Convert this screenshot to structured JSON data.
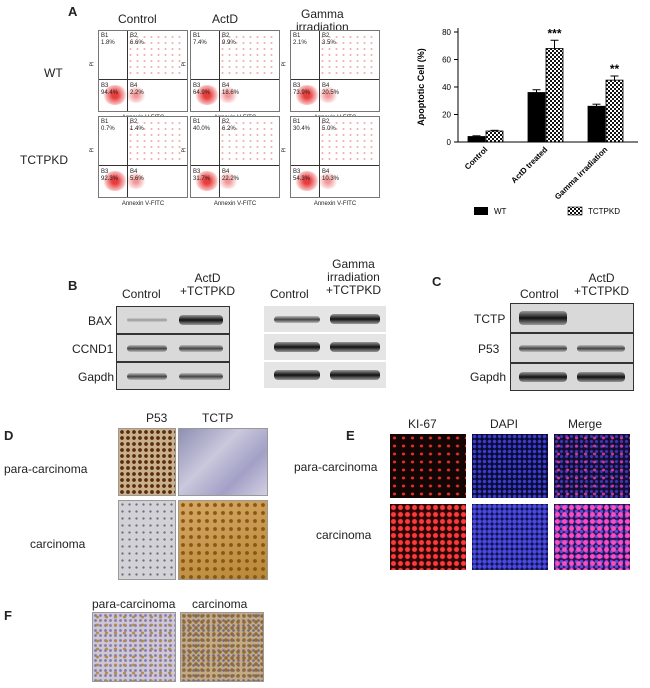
{
  "panels": {
    "A": "A",
    "B": "B",
    "C": "C",
    "D": "D",
    "E": "E",
    "F": "F"
  },
  "panel_a": {
    "columns": [
      "Control",
      "ActD",
      "Gamma\nirradiation"
    ],
    "rows": [
      "WT",
      "TCTPKD"
    ],
    "y_axis": "PI",
    "x_axis": "Annexin V-FITC",
    "plots": [
      {
        "B1": "B1",
        "B1v": "1.8%",
        "B2": "B2",
        "B2v": "6.6%",
        "B3": "B3",
        "B3v": "94.4%",
        "B4": "B4",
        "B4v": "2.2%"
      },
      {
        "B1": "B1",
        "B1v": "7.4%",
        "B2": "B2",
        "B2v": "9.9%",
        "B3": "B3",
        "B3v": "64.9%",
        "B4": "B4",
        "B4v": "18.6%"
      },
      {
        "B1": "B1",
        "B1v": "2.1%",
        "B2": "B2",
        "B2v": "3.5%",
        "B3": "B3",
        "B3v": "73.9%",
        "B4": "B4",
        "B4v": "20.5%"
      },
      {
        "B1": "B1",
        "B1v": "0.7%",
        "B2": "B2",
        "B2v": "1.4%",
        "B3": "B3",
        "B3v": "92.3%",
        "B4": "B4",
        "B4v": "5.6%"
      },
      {
        "B1": "B1",
        "B1v": "40.0%",
        "B2": "B2",
        "B2v": "6.2%",
        "B3": "B3",
        "B3v": "31.7%",
        "B4": "B4",
        "B4v": "22.2%"
      },
      {
        "B1": "B1",
        "B1v": "30.4%",
        "B2": "B2",
        "B2v": "5.0%",
        "B3": "B3",
        "B3v": "54.3%",
        "B4": "B4",
        "B4v": "10.3%"
      }
    ]
  },
  "chart_data": {
    "type": "bar",
    "ylabel": "Apoptotic Cell (%)",
    "ylim": [
      0,
      80
    ],
    "yticks": [
      "0",
      "20",
      "40",
      "60",
      "80"
    ],
    "categories": [
      "Control",
      "ActD treated",
      "Gamma irradiation"
    ],
    "series": [
      {
        "name": "WT",
        "values": [
          4,
          36,
          26
        ],
        "errors": [
          0.5,
          2,
          1.5
        ],
        "color": "#000000"
      },
      {
        "name": "TCTPKD",
        "values": [
          8,
          68,
          45
        ],
        "errors": [
          0.5,
          6,
          3
        ],
        "color": "checker"
      }
    ],
    "annotations": [
      {
        "category": 1,
        "text": "***"
      },
      {
        "category": 2,
        "text": "**"
      }
    ]
  },
  "panel_b": {
    "left_headers": [
      "Control",
      "ActD\n+TCTPKD"
    ],
    "right_headers": [
      "Control",
      "Gamma\nirradiation\n+TCTPKD"
    ],
    "rows": [
      "BAX",
      "CCND1",
      "Gapdh"
    ]
  },
  "panel_c": {
    "headers": [
      "Control",
      "ActD\n+TCTPKD"
    ],
    "rows": [
      "TCTP",
      "P53",
      "Gapdh"
    ]
  },
  "panel_d": {
    "headers": [
      "P53",
      "TCTP"
    ],
    "rows": [
      "para-carcinoma",
      "carcinoma"
    ]
  },
  "panel_e": {
    "headers": [
      "KI-67",
      "DAPI",
      "Merge"
    ],
    "rows": [
      "para-carcinoma",
      "carcinoma"
    ]
  },
  "panel_f": {
    "headers": [
      "para-carcinoma",
      "carcinoma"
    ]
  }
}
